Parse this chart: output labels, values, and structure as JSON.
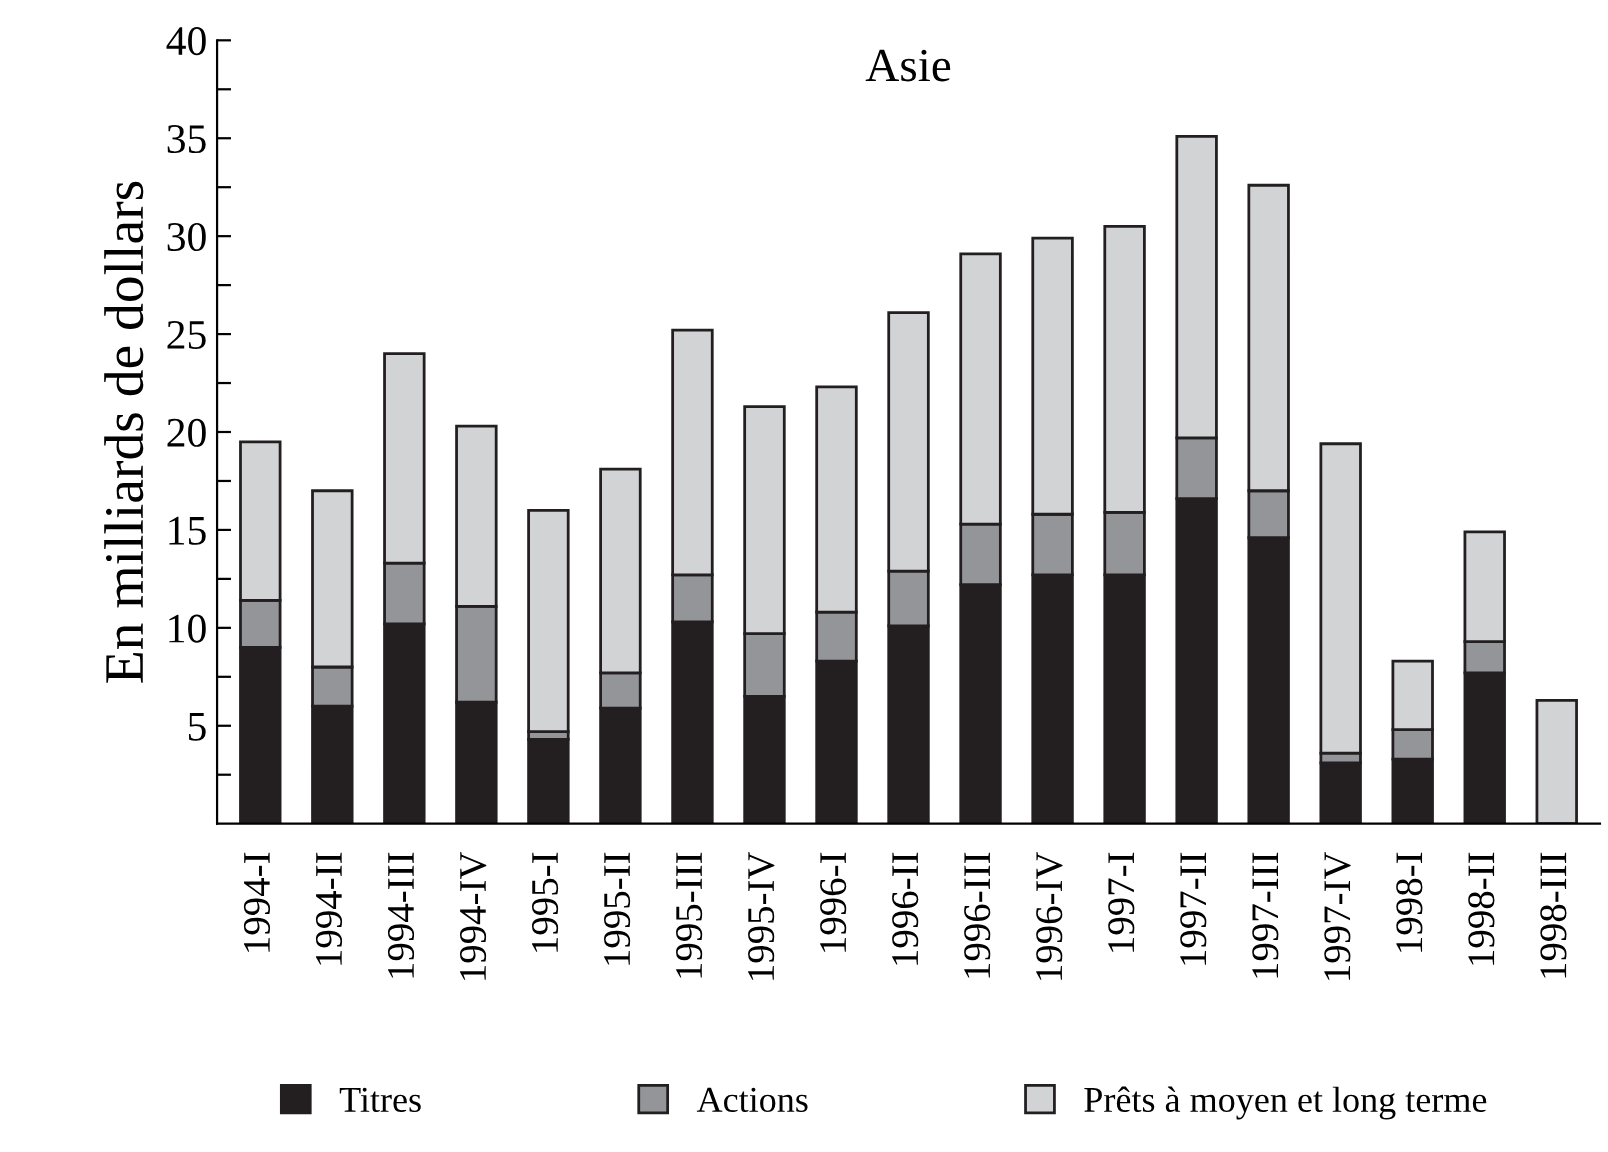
{
  "chart_data": {
    "type": "bar",
    "stacked": true,
    "title": "Asie",
    "ylabel": "En milliards de dollars",
    "categories": [
      "1994-I",
      "1994-II",
      "1994-III",
      "1994-IV",
      "1995-I",
      "1995-II",
      "1995-III",
      "1995-IV",
      "1996-I",
      "1996-II",
      "1996-III",
      "1996-IV",
      "1997-I",
      "1997-II",
      "1997-III",
      "1997-IV",
      "1998-I",
      "1998-II",
      "1998-III"
    ],
    "series": [
      {
        "name": "Titres",
        "color": "#231f20",
        "values": [
          9.0,
          6.0,
          10.2,
          6.2,
          4.3,
          5.9,
          10.3,
          6.5,
          8.3,
          10.1,
          12.2,
          12.7,
          12.7,
          16.6,
          14.6,
          3.1,
          3.3,
          7.7,
          0
        ]
      },
      {
        "name": "Actions",
        "color": "#939598",
        "values": [
          2.4,
          2.0,
          3.1,
          4.9,
          0.4,
          1.8,
          2.4,
          3.2,
          2.5,
          2.8,
          3.1,
          3.1,
          3.2,
          3.1,
          2.4,
          0.5,
          1.5,
          1.6,
          0
        ]
      },
      {
        "name": "Prêts à moyen et long terme",
        "color": "#d1d3d4",
        "values": [
          8.1,
          9.0,
          10.7,
          9.2,
          11.3,
          10.4,
          12.5,
          11.6,
          11.5,
          13.2,
          13.8,
          14.1,
          14.6,
          15.4,
          15.6,
          15.8,
          3.5,
          5.6,
          6.3
        ]
      }
    ],
    "ylim": [
      0,
      40
    ],
    "yticks": [
      {
        "value": 2.5,
        "label": null
      },
      5,
      {
        "value": 7.5,
        "label": null
      },
      10,
      {
        "value": 12.5,
        "label": null
      },
      15,
      {
        "value": 17.5,
        "label": null
      },
      20,
      {
        "value": 22.5,
        "label": null
      },
      25,
      {
        "value": 27.5,
        "label": null
      },
      30,
      {
        "value": 32.5,
        "label": null
      },
      35,
      {
        "value": 37.5,
        "label": null
      },
      40
    ],
    "grid": false,
    "legend": "bottom"
  }
}
